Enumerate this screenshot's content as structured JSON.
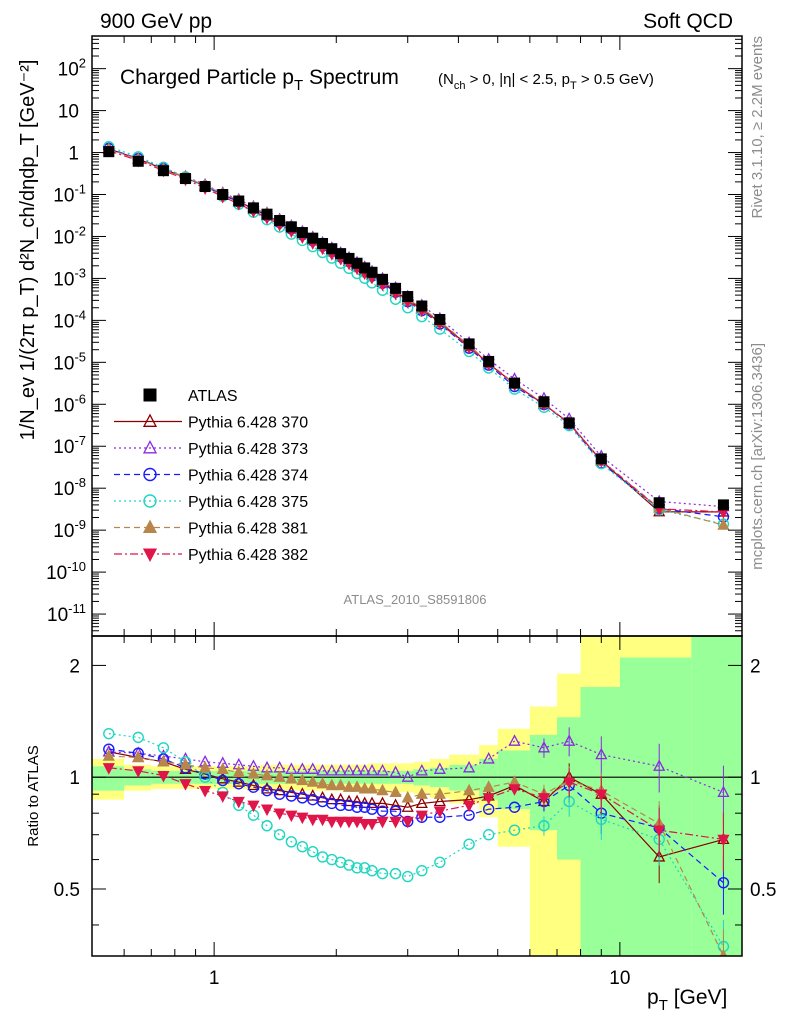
{
  "header": {
    "left": "900 GeV pp",
    "right": "Soft QCD"
  },
  "side_text": {
    "rivet": "Rivet 3.1.10, ≥ 2.2M events",
    "mcplots": "mcplots.cern.ch [arXiv:1306.3436]"
  },
  "chart_data": [
    {
      "type": "scatter",
      "panel": "main",
      "title_main": "Charged Particle p",
      "title_main_sub": "T",
      "title_main_rest": " Spectrum",
      "title_cond": "(N",
      "title_cond_sub1": "ch",
      "title_cond_mid": " > 0, |η| < 2.5, p",
      "title_cond_sub2": "T",
      "title_cond_end": " > 0.5 GeV)",
      "ylabel": "1/N_ev 1/(2π p_T) d²N_ch/dηdp_T [GeV⁻²]",
      "yscale": "log",
      "xscale": "log",
      "xlim": [
        0.5,
        20
      ],
      "ylim": [
        3e-12,
        600
      ],
      "y_ticks": [
        {
          "v": 1e-11,
          "base": "10",
          "exp": "-11"
        },
        {
          "v": 1e-10,
          "base": "10",
          "exp": "-10"
        },
        {
          "v": 1e-09,
          "base": "10",
          "exp": "-9"
        },
        {
          "v": 1e-08,
          "base": "10",
          "exp": "-8"
        },
        {
          "v": 1e-07,
          "base": "10",
          "exp": "-7"
        },
        {
          "v": 1e-06,
          "base": "10",
          "exp": "-6"
        },
        {
          "v": 1e-05,
          "base": "10",
          "exp": "-5"
        },
        {
          "v": 0.0001,
          "base": "10",
          "exp": "-4"
        },
        {
          "v": 0.001,
          "base": "10",
          "exp": "-3"
        },
        {
          "v": 0.01,
          "base": "10",
          "exp": "-2"
        },
        {
          "v": 0.1,
          "base": "10",
          "exp": "-1"
        },
        {
          "v": 1,
          "base": "1",
          "exp": ""
        },
        {
          "v": 10,
          "base": "10",
          "exp": ""
        },
        {
          "v": 100,
          "base": "10",
          "exp": "2"
        }
      ],
      "watermark": "ATLAS_2010_S8591806",
      "x": [
        0.55,
        0.65,
        0.75,
        0.85,
        0.95,
        1.05,
        1.15,
        1.25,
        1.35,
        1.45,
        1.55,
        1.65,
        1.75,
        1.85,
        1.95,
        2.05,
        2.15,
        2.25,
        2.35,
        2.45,
        2.6,
        2.8,
        3.0,
        3.25,
        3.6,
        4.25,
        4.75,
        5.5,
        6.5,
        7.5,
        9.0,
        12.5,
        18.0
      ],
      "atlas": [
        1.05,
        0.62,
        0.37,
        0.24,
        0.155,
        0.1,
        0.07,
        0.048,
        0.034,
        0.024,
        0.017,
        0.0124,
        0.0091,
        0.0068,
        0.0051,
        0.0039,
        0.003,
        0.0023,
        0.00178,
        0.0014,
        0.00095,
        0.00058,
        0.00037,
        0.00022,
        0.000105,
        2.75e-05,
        1.05e-05,
        3.2e-06,
        1.15e-06,
        3.6e-07,
        5e-08,
        4.5e-09,
        4e-09
      ],
      "series": [
        {
          "name": "Pythia 6.428 370",
          "color": "#8b0000",
          "marker": "triangle-open",
          "line": "solid",
          "ratio": [
            1.17,
            1.13,
            1.1,
            1.05,
            1.02,
            0.99,
            0.97,
            0.95,
            0.93,
            0.92,
            0.91,
            0.9,
            0.89,
            0.88,
            0.87,
            0.87,
            0.86,
            0.86,
            0.85,
            0.85,
            0.85,
            0.84,
            0.83,
            0.85,
            0.86,
            0.87,
            0.89,
            0.95,
            0.86,
            1.0,
            0.9,
            0.61,
            0.68
          ]
        },
        {
          "name": "Pythia 6.428 373",
          "color": "#8a2be2",
          "marker": "triangle-open",
          "line": "dotted",
          "ratio": [
            1.17,
            1.16,
            1.14,
            1.12,
            1.1,
            1.09,
            1.08,
            1.07,
            1.06,
            1.06,
            1.05,
            1.05,
            1.05,
            1.04,
            1.04,
            1.04,
            1.04,
            1.04,
            1.04,
            1.04,
            1.04,
            1.03,
            1.0,
            1.04,
            1.05,
            1.06,
            1.12,
            1.25,
            1.2,
            1.25,
            1.15,
            1.07,
            0.91
          ]
        },
        {
          "name": "Pythia 6.428 374",
          "color": "#1a1aff",
          "marker": "circle-open",
          "line": "dashed",
          "ratio": [
            1.19,
            1.16,
            1.12,
            1.06,
            1.02,
            0.98,
            0.96,
            0.94,
            0.92,
            0.9,
            0.89,
            0.88,
            0.87,
            0.86,
            0.85,
            0.84,
            0.84,
            0.83,
            0.83,
            0.82,
            0.81,
            0.81,
            0.76,
            0.78,
            0.78,
            0.79,
            0.82,
            0.83,
            0.86,
            0.95,
            0.8,
            0.73,
            0.52
          ]
        },
        {
          "name": "Pythia 6.428 375",
          "color": "#1fd6c0",
          "marker": "circle-open",
          "line": "dotted",
          "ratio": [
            1.31,
            1.28,
            1.2,
            1.1,
            1.0,
            0.91,
            0.84,
            0.79,
            0.74,
            0.7,
            0.67,
            0.65,
            0.63,
            0.61,
            0.6,
            0.59,
            0.58,
            0.57,
            0.57,
            0.56,
            0.55,
            0.55,
            0.54,
            0.56,
            0.59,
            0.66,
            0.7,
            0.72,
            0.74,
            0.86,
            0.77,
            0.68,
            0.35
          ]
        },
        {
          "name": "Pythia 6.428 381",
          "color": "#b8864b",
          "marker": "triangle-filled",
          "line": "dashed",
          "ratio": [
            1.14,
            1.13,
            1.1,
            1.08,
            1.06,
            1.05,
            1.03,
            1.02,
            1.01,
            1.0,
            0.99,
            0.98,
            0.97,
            0.96,
            0.95,
            0.95,
            0.94,
            0.94,
            0.93,
            0.93,
            0.92,
            0.91,
            0.88,
            0.9,
            0.9,
            0.92,
            0.94,
            0.97,
            0.9,
            0.98,
            0.92,
            0.75,
            0.33
          ]
        },
        {
          "name": "Pythia 6.428 382",
          "color": "#e0154a",
          "marker": "triangle-down-filled",
          "line": "dashdot",
          "ratio": [
            1.06,
            1.04,
            1.01,
            0.96,
            0.92,
            0.89,
            0.86,
            0.84,
            0.82,
            0.8,
            0.79,
            0.78,
            0.77,
            0.77,
            0.76,
            0.76,
            0.76,
            0.76,
            0.75,
            0.75,
            0.76,
            0.76,
            0.76,
            0.79,
            0.81,
            0.84,
            0.88,
            0.93,
            0.88,
            0.97,
            0.9,
            0.72,
            0.68
          ]
        }
      ]
    },
    {
      "type": "scatter",
      "panel": "ratio",
      "ylabel": "Ratio to ATLAS",
      "xlabel": "p",
      "xlabel_sub": "T",
      "xlabel_unit": " [GeV]",
      "yscale": "log",
      "ylim": [
        0.33,
        2.4
      ],
      "y_ticks": [
        {
          "v": 0.5,
          "label": "0.5"
        },
        {
          "v": 1,
          "label": "1"
        },
        {
          "v": 2,
          "label": "2"
        }
      ],
      "x_ticks": [
        {
          "v": 1,
          "label": "1"
        },
        {
          "v": 10,
          "label": "10"
        }
      ],
      "band_edges": [
        0.5,
        0.6,
        0.7,
        0.8,
        0.9,
        1.0,
        1.1,
        1.2,
        1.3,
        1.4,
        1.5,
        1.6,
        1.7,
        1.8,
        1.9,
        2.0,
        2.1,
        2.2,
        2.3,
        2.4,
        2.5,
        2.7,
        2.9,
        3.1,
        3.4,
        3.8,
        4.5,
        5.0,
        6.0,
        7.0,
        8.0,
        10.0,
        15.0,
        20.0
      ],
      "band_green": [
        [
          0.92,
          1.07
        ],
        [
          0.95,
          1.05
        ],
        [
          0.96,
          1.04
        ],
        [
          0.96,
          1.04
        ],
        [
          0.96,
          1.04
        ],
        [
          0.96,
          1.04
        ],
        [
          0.96,
          1.04
        ],
        [
          0.96,
          1.04
        ],
        [
          0.96,
          1.04
        ],
        [
          0.96,
          1.04
        ],
        [
          0.96,
          1.04
        ],
        [
          0.96,
          1.04
        ],
        [
          0.96,
          1.04
        ],
        [
          0.96,
          1.04
        ],
        [
          0.96,
          1.04
        ],
        [
          0.96,
          1.04
        ],
        [
          0.96,
          1.04
        ],
        [
          0.96,
          1.04
        ],
        [
          0.96,
          1.04
        ],
        [
          0.96,
          1.04
        ],
        [
          0.96,
          1.04
        ],
        [
          0.96,
          1.04
        ],
        [
          0.96,
          1.04
        ],
        [
          0.95,
          1.05
        ],
        [
          0.94,
          1.06
        ],
        [
          0.92,
          1.08
        ],
        [
          0.87,
          1.12
        ],
        [
          0.82,
          1.18
        ],
        [
          0.72,
          1.3
        ],
        [
          0.6,
          1.45
        ],
        [
          0.33,
          1.75
        ],
        [
          0.33,
          2.1
        ],
        [
          0.33,
          2.4
        ]
      ],
      "band_yellow": [
        [
          0.87,
          1.12
        ],
        [
          0.92,
          1.08
        ],
        [
          0.93,
          1.07
        ],
        [
          0.93,
          1.07
        ],
        [
          0.93,
          1.07
        ],
        [
          0.93,
          1.07
        ],
        [
          0.93,
          1.07
        ],
        [
          0.93,
          1.07
        ],
        [
          0.93,
          1.08
        ],
        [
          0.92,
          1.08
        ],
        [
          0.92,
          1.08
        ],
        [
          0.92,
          1.08
        ],
        [
          0.92,
          1.08
        ],
        [
          0.92,
          1.08
        ],
        [
          0.92,
          1.08
        ],
        [
          0.92,
          1.08
        ],
        [
          0.92,
          1.08
        ],
        [
          0.92,
          1.08
        ],
        [
          0.92,
          1.08
        ],
        [
          0.92,
          1.09
        ],
        [
          0.91,
          1.09
        ],
        [
          0.91,
          1.09
        ],
        [
          0.91,
          1.09
        ],
        [
          0.9,
          1.1
        ],
        [
          0.88,
          1.12
        ],
        [
          0.85,
          1.15
        ],
        [
          0.78,
          1.22
        ],
        [
          0.65,
          1.35
        ],
        [
          0.33,
          1.55
        ],
        [
          0.33,
          1.9
        ],
        [
          0.33,
          2.4
        ],
        [
          0.33,
          2.4
        ],
        [
          0.33,
          2.4
        ]
      ]
    }
  ]
}
